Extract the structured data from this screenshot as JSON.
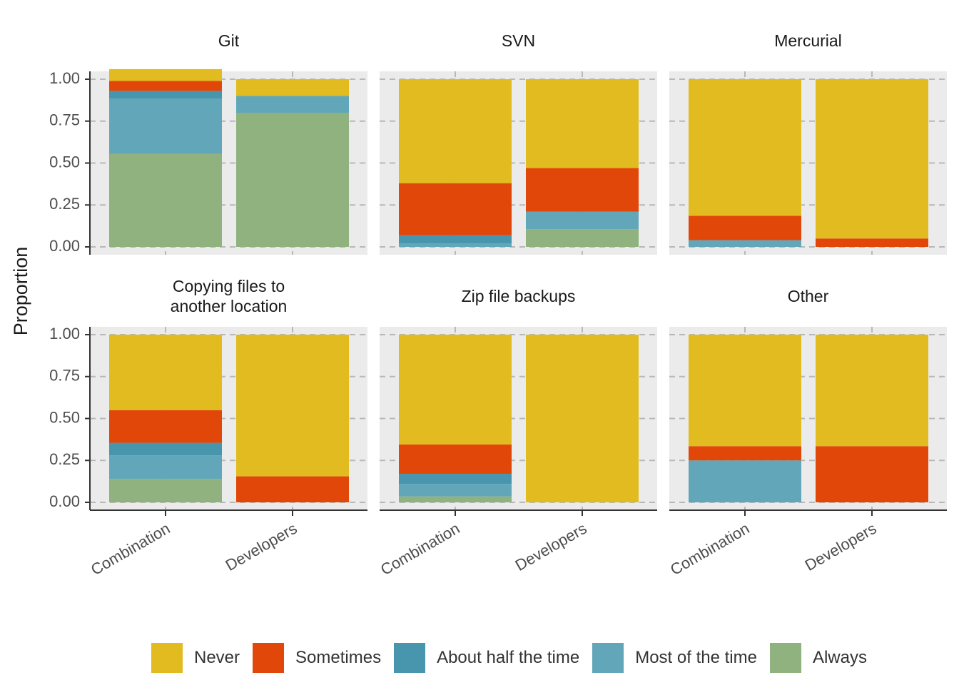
{
  "chart_data": {
    "type": "bar",
    "stacked": true,
    "ylabel": "Proportion",
    "ylim": [
      0,
      1
    ],
    "yticks": [
      "0.00",
      "0.25",
      "0.50",
      "0.75",
      "1.00"
    ],
    "categories": [
      "Combination",
      "Developers"
    ],
    "legend_position": "bottom",
    "grid": true,
    "series": [
      {
        "name": "Never",
        "color": "#E1BB1F"
      },
      {
        "name": "Sometimes",
        "color": "#E2470A"
      },
      {
        "name": "About half the time",
        "color": "#4896AE"
      },
      {
        "name": "Most of the time",
        "color": "#62A7B9"
      },
      {
        "name": "Always",
        "color": "#8FB27E"
      }
    ],
    "panels": [
      {
        "title": "Git",
        "values": {
          "Combination": [
            0.07,
            0.06,
            0.045,
            0.33,
            0.555
          ],
          "Developers": [
            0.1,
            0.0,
            0.0,
            0.1,
            0.8
          ]
        }
      },
      {
        "title": "SVN",
        "values": {
          "Combination": [
            0.62,
            0.31,
            0.05,
            0.02,
            0.0
          ],
          "Developers": [
            0.53,
            0.26,
            0.0,
            0.105,
            0.105
          ]
        }
      },
      {
        "title": "Mercurial",
        "values": {
          "Combination": [
            0.815,
            0.145,
            0.0,
            0.04,
            0.0
          ],
          "Developers": [
            0.95,
            0.05,
            0.0,
            0.0,
            0.0
          ]
        }
      },
      {
        "title": "Copying files to another location",
        "values": {
          "Combination": [
            0.45,
            0.195,
            0.075,
            0.14,
            0.14
          ],
          "Developers": [
            0.845,
            0.155,
            0.0,
            0.0,
            0.0
          ]
        }
      },
      {
        "title": "Zip file backups",
        "values": {
          "Combination": [
            0.655,
            0.175,
            0.06,
            0.075,
            0.035
          ],
          "Developers": [
            1.0,
            0.0,
            0.0,
            0.0,
            0.0
          ]
        }
      },
      {
        "title": "Other",
        "values": {
          "Combination": [
            0.665,
            0.085,
            0.0,
            0.25,
            0.0
          ],
          "Developers": [
            0.665,
            0.335,
            0.0,
            0.0,
            0.0
          ]
        }
      }
    ]
  }
}
